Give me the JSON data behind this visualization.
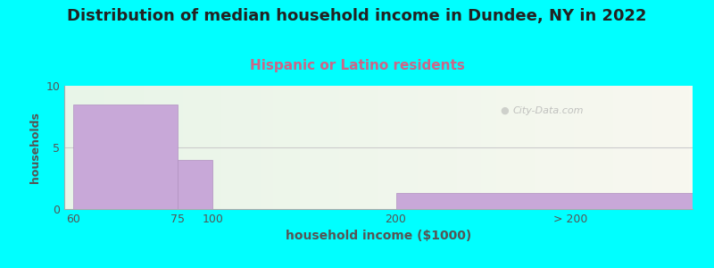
{
  "title": "Distribution of median household income in Dundee, NY in 2022",
  "subtitle": "Hispanic or Latino residents",
  "xlabel": "household income ($1000)",
  "ylabel": "households",
  "bar_color": "#c8a8d8",
  "bar_edge_color": "#b090c0",
  "ylim": [
    0,
    10
  ],
  "yticks": [
    0,
    5,
    10
  ],
  "background_color": "#00ffff",
  "plot_bg_color_left": "#e8f5e8",
  "plot_bg_color_right": "#f8f8f0",
  "title_fontsize": 13,
  "subtitle_fontsize": 11,
  "subtitle_color": "#cc6688",
  "watermark": "City-Data.com",
  "grid_color": "#cccccc",
  "tick_label_color": "#555555",
  "label_color": "#555555"
}
